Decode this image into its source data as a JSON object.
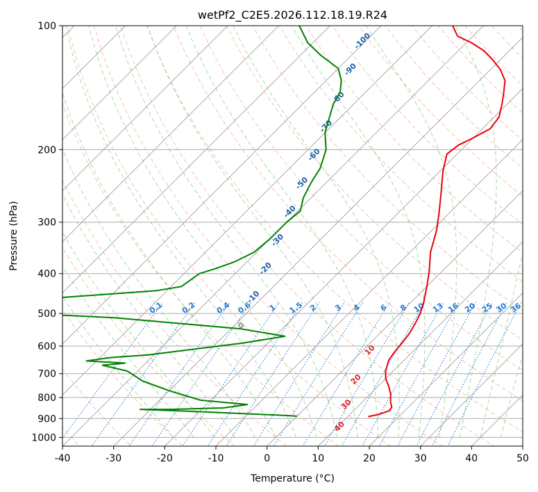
{
  "chart_data": {
    "type": "skew-t",
    "title": "wetPf2_C2E5.2026.112.18.19.R24",
    "xlabel": "Temperature (°C)",
    "ylabel": "Pressure (hPa)",
    "xlim": [
      -40,
      50
    ],
    "ylim": [
      1050,
      100
    ],
    "y_scale": "log",
    "x_ticks": [
      -40,
      -30,
      -20,
      -10,
      0,
      10,
      20,
      30,
      40,
      50
    ],
    "y_ticks": [
      100,
      200,
      300,
      400,
      500,
      600,
      700,
      800,
      900,
      1000
    ],
    "grid": true,
    "colors": {
      "temperature": "#e8000b",
      "dewpoint": "#008000",
      "isotherm": "#aaaaaa",
      "dry_adiabat": "#f4a582",
      "moist_adiabat": "#8fcf8f",
      "mixing_ratio": "#1f77d4",
      "wetbulb_label": "#1f5fa8",
      "theta_e_label": "#d62728"
    },
    "series": [
      {
        "name": "Temperature",
        "points": [
          [
            14.0,
            890
          ],
          [
            15.5,
            880
          ],
          [
            17.0,
            862
          ],
          [
            16.8,
            845
          ],
          [
            15.5,
            820
          ],
          [
            14.0,
            785
          ],
          [
            12.0,
            750
          ],
          [
            10.0,
            720
          ],
          [
            8.5,
            690
          ],
          [
            7.0,
            650
          ],
          [
            6.5,
            620
          ],
          [
            6.2,
            590
          ],
          [
            5.8,
            560
          ],
          [
            5.0,
            530
          ],
          [
            4.0,
            500
          ],
          [
            2.5,
            470
          ],
          [
            0.0,
            430
          ],
          [
            -2.5,
            395
          ],
          [
            -6.0,
            355
          ],
          [
            -9.0,
            315
          ],
          [
            -12.0,
            285
          ],
          [
            -15.5,
            255
          ],
          [
            -19.5,
            225
          ],
          [
            -22.0,
            205
          ],
          [
            -21.5,
            195
          ],
          [
            -20.0,
            187
          ],
          [
            -18.5,
            178
          ],
          [
            -19.0,
            167
          ],
          [
            -21.0,
            155
          ],
          [
            -23.0,
            145
          ],
          [
            -25.0,
            136
          ],
          [
            -28.0,
            128
          ],
          [
            -31.5,
            121
          ],
          [
            -35.0,
            115
          ],
          [
            -39.0,
            110
          ],
          [
            -43.0,
            106
          ],
          [
            -46.0,
            100
          ]
        ]
      },
      {
        "name": "Dewpoint",
        "points": [
          [
            0.0,
            888
          ],
          [
            -2.0,
            885
          ],
          [
            -20.0,
            866
          ],
          [
            -32.0,
            855
          ],
          [
            -26.0,
            855
          ],
          [
            -16.0,
            848
          ],
          [
            -12.0,
            832
          ],
          [
            -22.0,
            812
          ],
          [
            -30.0,
            770
          ],
          [
            -37.0,
            730
          ],
          [
            -42.0,
            690
          ],
          [
            -48.0,
            668
          ],
          [
            -44.0,
            660
          ],
          [
            -52.0,
            652
          ],
          [
            -48.0,
            640
          ],
          [
            -41.0,
            630
          ],
          [
            -25.0,
            590
          ],
          [
            -18.0,
            568
          ],
          [
            -28.0,
            545
          ],
          [
            -55.0,
            512
          ],
          [
            -76.0,
            498
          ],
          [
            -70.0,
            458
          ],
          [
            -52.0,
            440
          ],
          [
            -48.0,
            430
          ],
          [
            -47.0,
            400
          ],
          [
            -45.0,
            390
          ],
          [
            -42.5,
            375
          ],
          [
            -40.5,
            355
          ],
          [
            -40.0,
            330
          ],
          [
            -40.0,
            300
          ],
          [
            -39.5,
            282
          ],
          [
            -41.5,
            262
          ],
          [
            -43.0,
            240
          ],
          [
            -44.0,
            222
          ],
          [
            -46.5,
            200
          ],
          [
            -50.0,
            182
          ],
          [
            -52.0,
            168
          ],
          [
            -54.0,
            155
          ],
          [
            -55.0,
            145
          ],
          [
            -57.0,
            136
          ],
          [
            -60.0,
            127
          ],
          [
            -66.0,
            118
          ],
          [
            -71.0,
            110
          ],
          [
            -76.0,
            100
          ]
        ]
      }
    ],
    "mixing_ratio_labels": [
      "0.1",
      "0.2",
      "0.4",
      "0.6",
      "1",
      "1.5",
      "2",
      "3",
      "4",
      "6",
      "8",
      "10",
      "13",
      "16",
      "20",
      "25",
      "30",
      "36"
    ],
    "wetbulb_labels": [
      "-100",
      "-90",
      "-80",
      "-70",
      "-60",
      "-50",
      "-40",
      "-30",
      "-20",
      "-10",
      "0"
    ],
    "theta_e_labels": [
      "10",
      "20",
      "30",
      "40"
    ]
  }
}
